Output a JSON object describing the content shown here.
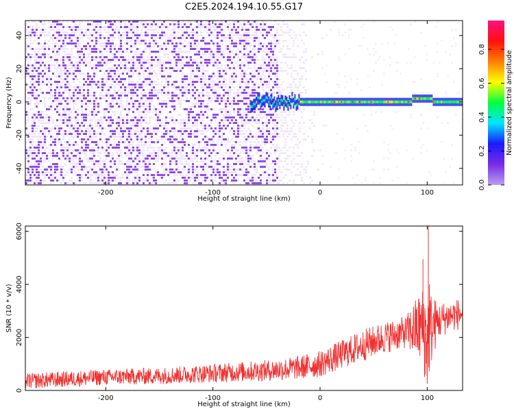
{
  "title": "C2E5.2024.194.10.55.G17",
  "colors": {
    "snr_line": "#f03030",
    "noise_core": "#7a2be6",
    "noise_light": "#e4d4fa",
    "colorbar_stops": [
      "#b8a0f0",
      "#7a2be6",
      "#1a1aff",
      "#00e5ff",
      "#00ff40",
      "#ffff00",
      "#ff7f00",
      "#ff1010",
      "#ff1080"
    ]
  },
  "chart_data": [
    {
      "type": "heatmap",
      "title": "C2E5.2024.194.10.55.G17",
      "xlabel": "Height of straight line (km)",
      "ylabel": "Frequency (Hz)",
      "xlim": [
        -275,
        133
      ],
      "ylim": [
        -50,
        49
      ],
      "x_ticks": [
        -200,
        -100,
        0,
        100
      ],
      "y_ticks": [
        -40,
        -20,
        0,
        20,
        40
      ],
      "grid": false,
      "description_regions": [
        {
          "x_range": [
            -275,
            -40
          ],
          "f_range": [
            -50,
            49
          ],
          "amplitude": 0.1
        },
        {
          "x_range": [
            -40,
            0
          ],
          "f_range": [
            -50,
            49
          ],
          "amplitude": 0.04
        },
        {
          "x_range": [
            -65,
            133
          ],
          "f_center": 0,
          "amplitude": 0.45
        }
      ],
      "colorbar": {
        "label": "Normalized spectral amplitude",
        "range": [
          0.0,
          0.97
        ],
        "ticks": [
          "0.0",
          "0.2",
          "0.4",
          "0.6",
          "0.8"
        ]
      }
    },
    {
      "type": "line",
      "xlabel": "Height of straight line (km)",
      "ylabel": "SNR (10 * v/v)",
      "xlim": [
        -275,
        133
      ],
      "ylim": [
        0,
        6200
      ],
      "x_ticks": [
        -200,
        -100,
        0,
        100
      ],
      "y_ticks": [
        0,
        2000,
        4000,
        6000
      ],
      "grid": false,
      "series": [
        {
          "x": [
            -275,
            -250,
            -200,
            -150,
            -100,
            -50,
            -20,
            0,
            20,
            40,
            60,
            80,
            95,
            100,
            103,
            110,
            120,
            133
          ],
          "y_mean": [
            350,
            400,
            500,
            550,
            650,
            750,
            850,
            1000,
            1350,
            1700,
            2000,
            2200,
            2400,
            2000,
            2300,
            2600,
            2800,
            2900
          ],
          "y_spread": [
            300,
            300,
            300,
            320,
            350,
            400,
            450,
            500,
            550,
            600,
            600,
            600,
            1500,
            2000,
            1500,
            700,
            600,
            600
          ],
          "spikes": [
            {
              "x": 96,
              "y": 4950
            },
            {
              "x": 98,
              "y": 600
            },
            {
              "x": 100,
              "y": 250
            },
            {
              "x": 101,
              "y": 6200
            },
            {
              "x": 102,
              "y": 4000
            }
          ]
        }
      ]
    }
  ]
}
